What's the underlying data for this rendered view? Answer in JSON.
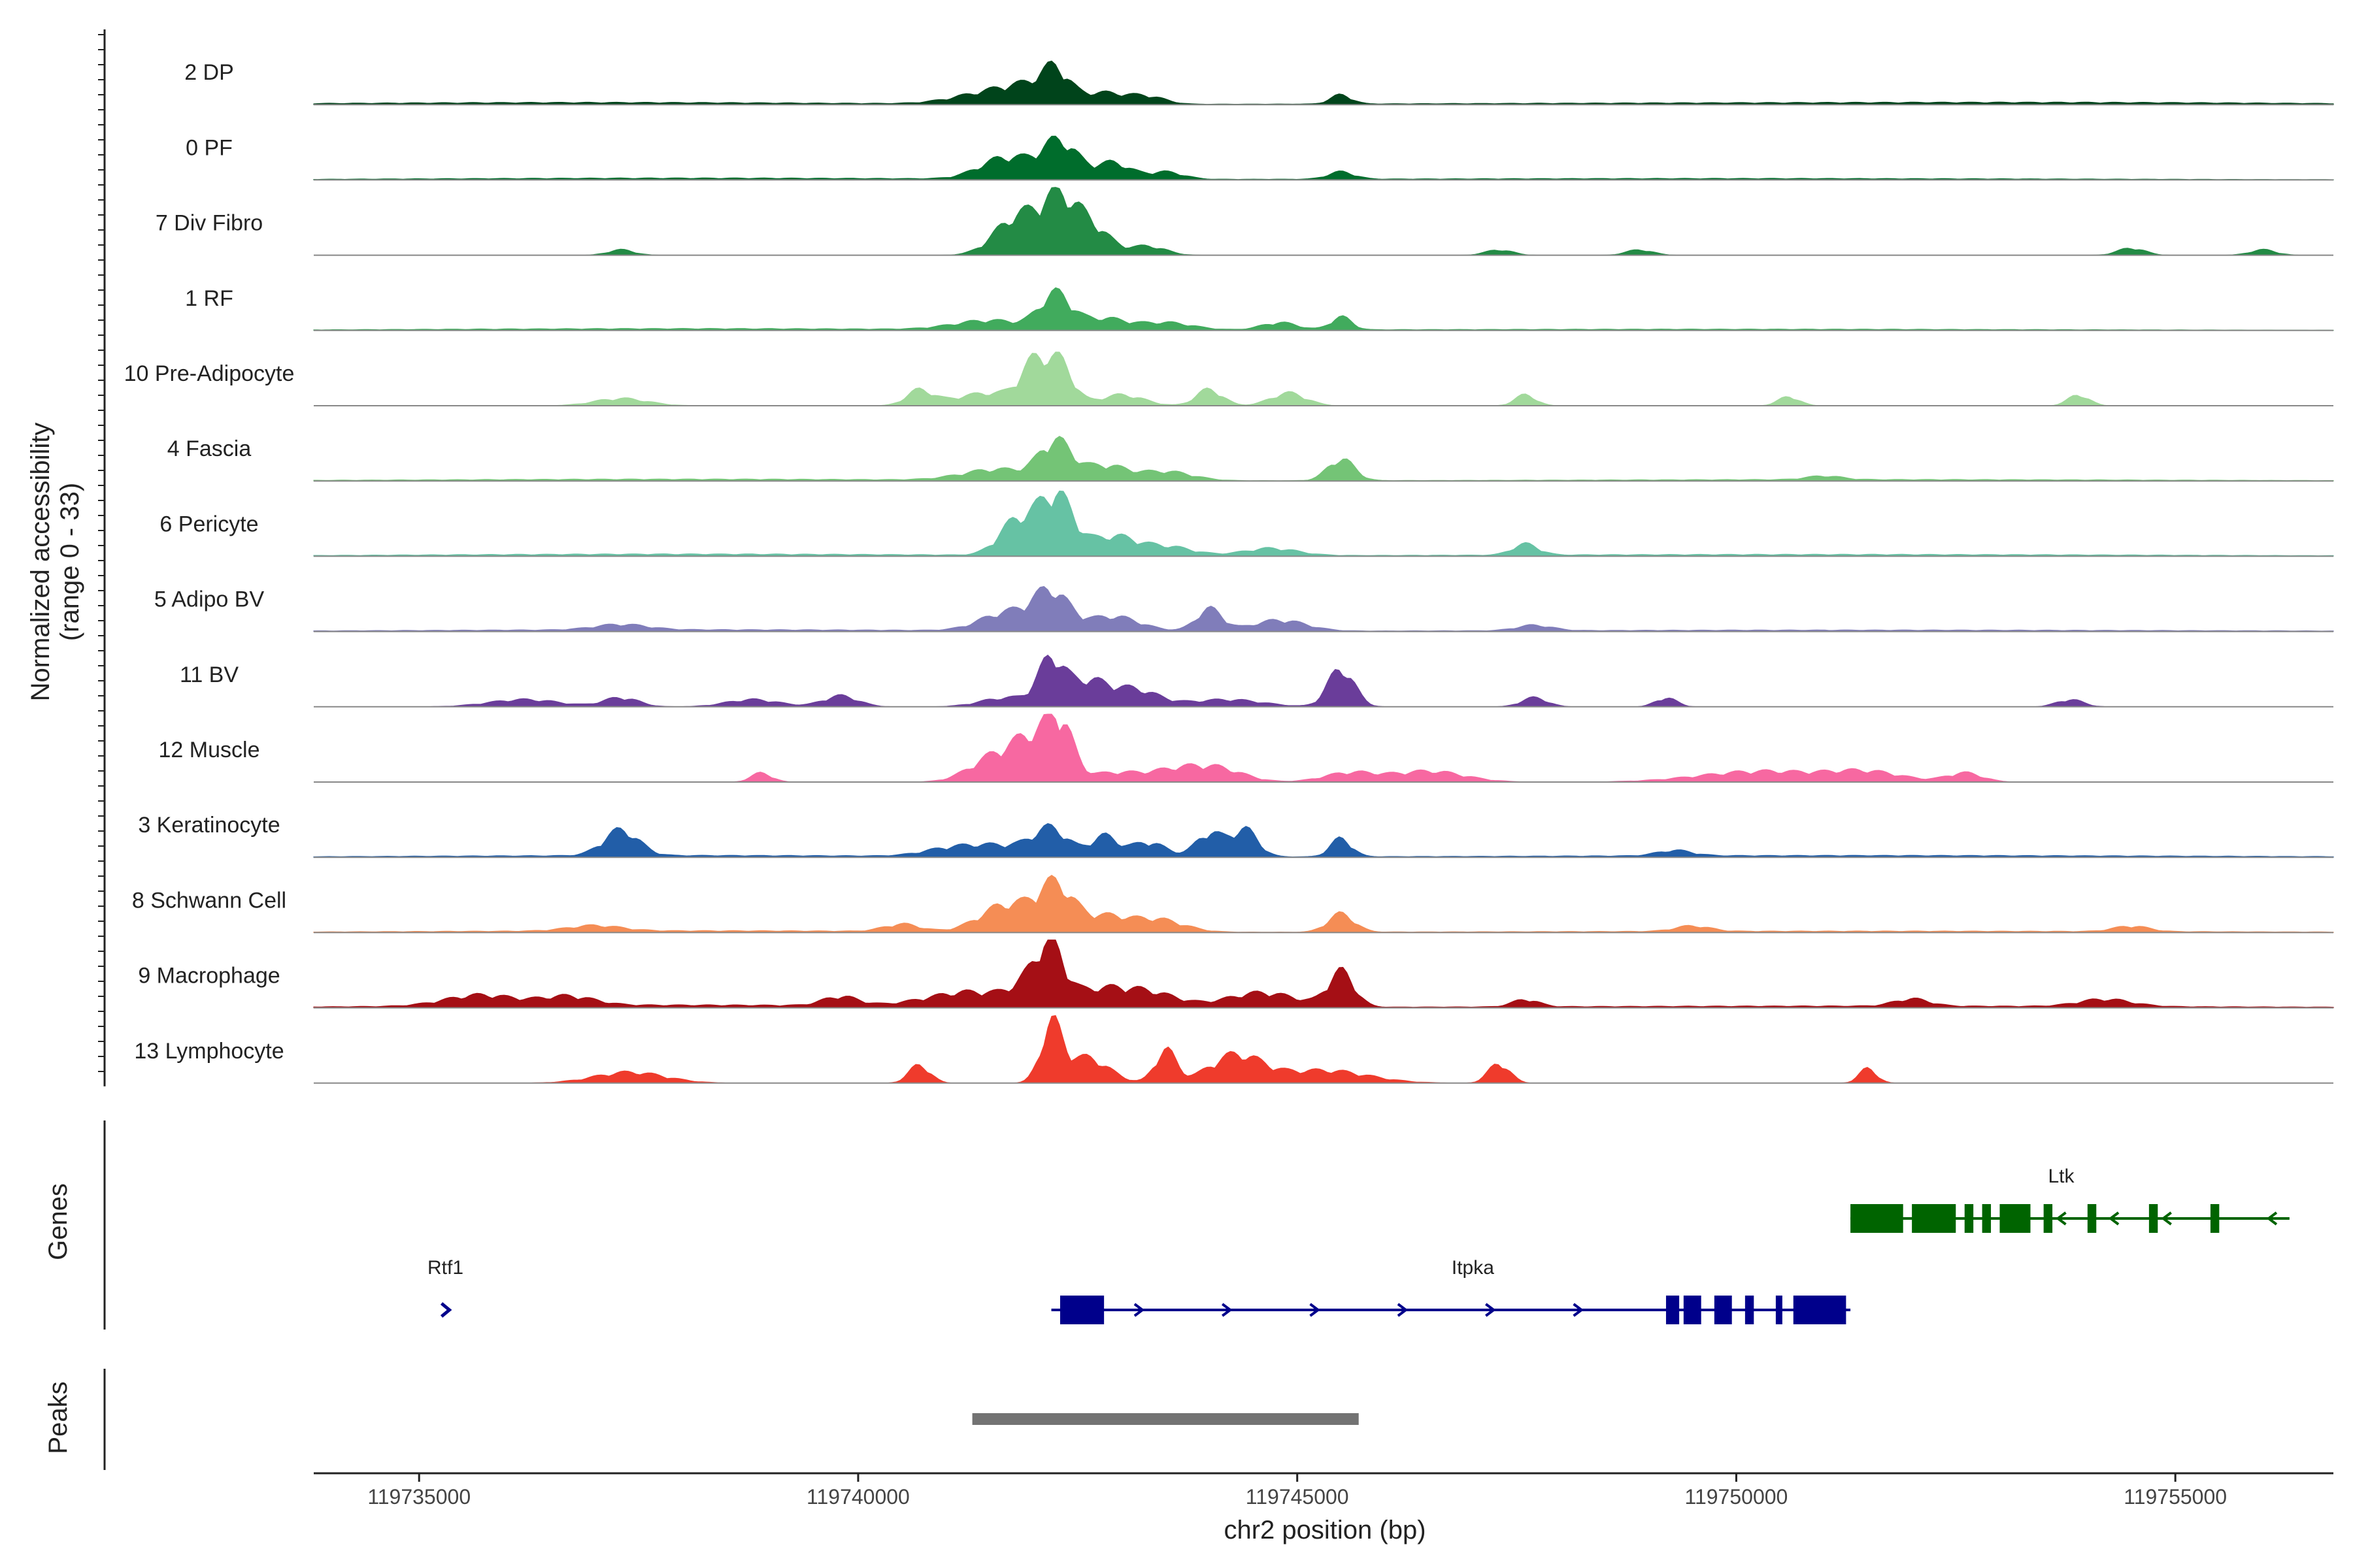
{
  "chart_data": {
    "type": "area",
    "title": "",
    "chromosome": "chr2",
    "xlabel": "chr2 position (bp)",
    "ylabel_line1": "Normalized accessibility",
    "ylabel_line2": "(range 0 - 33)",
    "ylim": [
      0,
      33
    ],
    "xlim": [
      119733800,
      119756800
    ],
    "x_ticks": [
      119735000,
      119740000,
      119745000,
      119750000,
      119755000
    ],
    "x_tick_labels": [
      "119735000",
      "119740000",
      "119745000",
      "119750000",
      "119755000"
    ],
    "tracks": [
      {
        "name": "2 DP",
        "color": "#00441b",
        "peaks": [
          [
            119741500,
            6,
            400
          ],
          [
            119742000,
            8,
            300
          ],
          [
            119742250,
            14,
            150
          ],
          [
            119742800,
            6,
            250
          ],
          [
            119743300,
            4,
            200
          ],
          [
            119745500,
            5,
            120
          ],
          [
            119737000,
            1.2,
            3000
          ],
          [
            119750000,
            0.9,
            3500
          ],
          [
            119754500,
            0.8,
            2500
          ]
        ]
      },
      {
        "name": "0 PF",
        "color": "#006d2c",
        "peaks": [
          [
            119741700,
            12,
            300
          ],
          [
            119742300,
            20,
            200
          ],
          [
            119742900,
            9,
            200
          ],
          [
            119743500,
            4,
            200
          ],
          [
            119745500,
            4,
            150
          ],
          [
            119738000,
            1,
            3000
          ],
          [
            119750000,
            0.8,
            4000
          ]
        ]
      },
      {
        "name": "7 Div Fibro",
        "color": "#238b45",
        "peaks": [
          [
            119741800,
            20,
            250
          ],
          [
            119742300,
            30,
            220
          ],
          [
            119742700,
            12,
            200
          ],
          [
            119743300,
            5,
            200
          ],
          [
            119737300,
            3,
            150
          ],
          [
            119747300,
            3,
            150
          ],
          [
            119748900,
            3,
            150
          ],
          [
            119754500,
            4,
            150
          ],
          [
            119756000,
            3,
            150
          ]
        ]
      },
      {
        "name": "1 RF",
        "color": "#41ab5d",
        "peaks": [
          [
            119741500,
            5,
            400
          ],
          [
            119742250,
            19,
            180
          ],
          [
            119742800,
            6,
            250
          ],
          [
            119743500,
            4,
            300
          ],
          [
            119744800,
            4,
            200
          ],
          [
            119745500,
            7,
            120
          ],
          [
            119738000,
            1,
            3000
          ],
          [
            119750000,
            0.7,
            4000
          ]
        ]
      },
      {
        "name": "10 Pre-Adipocyte",
        "color": "#a1d99b",
        "peaks": [
          [
            119737300,
            4,
            300
          ],
          [
            119740700,
            8,
            150
          ],
          [
            119741500,
            7,
            400
          ],
          [
            119742000,
            20,
            150
          ],
          [
            119742300,
            22,
            150
          ],
          [
            119743000,
            6,
            250
          ],
          [
            119744000,
            9,
            150
          ],
          [
            119744900,
            7,
            200
          ],
          [
            119747600,
            6,
            120
          ],
          [
            119750600,
            5,
            120
          ],
          [
            119753900,
            6,
            120
          ]
        ]
      },
      {
        "name": "4 Fascia",
        "color": "#74c476",
        "peaks": [
          [
            119741600,
            6,
            400
          ],
          [
            119742250,
            20,
            180
          ],
          [
            119742800,
            8,
            250
          ],
          [
            119743500,
            5,
            300
          ],
          [
            119745500,
            12,
            150
          ],
          [
            119751000,
            2,
            200
          ],
          [
            119738000,
            1,
            3000
          ],
          [
            119751500,
            0.8,
            3500
          ]
        ]
      },
      {
        "name": "6 Pericyte",
        "color": "#66c2a4",
        "peaks": [
          [
            119741800,
            18,
            200
          ],
          [
            119742250,
            33,
            200
          ],
          [
            119742900,
            10,
            250
          ],
          [
            119743500,
            5,
            300
          ],
          [
            119744700,
            4,
            300
          ],
          [
            119747600,
            6,
            150
          ],
          [
            119738000,
            1.2,
            3000
          ],
          [
            119751000,
            1,
            4000
          ]
        ]
      },
      {
        "name": "5 Adipo BV",
        "color": "#807dba",
        "peaks": [
          [
            119741700,
            10,
            300
          ],
          [
            119742200,
            20,
            200
          ],
          [
            119742900,
            8,
            300
          ],
          [
            119744000,
            12,
            150
          ],
          [
            119744800,
            6,
            300
          ],
          [
            119737300,
            3,
            300
          ],
          [
            119747700,
            3,
            200
          ],
          [
            119738000,
            1,
            3000
          ],
          [
            119751500,
            0.8,
            4000
          ]
        ]
      },
      {
        "name": "11 BV",
        "color": "#6a3d9a",
        "peaks": [
          [
            119742200,
            25,
            150
          ],
          [
            119742600,
            12,
            200
          ],
          [
            119743100,
            10,
            300
          ],
          [
            119745500,
            21,
            150
          ],
          [
            119736200,
            4,
            400
          ],
          [
            119737300,
            5,
            200
          ],
          [
            119739800,
            6,
            200
          ],
          [
            119741700,
            5,
            300
          ],
          [
            119744200,
            4,
            400
          ],
          [
            119747700,
            5,
            150
          ],
          [
            119749200,
            5,
            120
          ],
          [
            119753800,
            4,
            150
          ],
          [
            119738800,
            4,
            300
          ]
        ]
      },
      {
        "name": "12 Muscle",
        "color": "#f768a1",
        "peaks": [
          [
            119741600,
            15,
            300
          ],
          [
            119742000,
            18,
            200
          ],
          [
            119742300,
            30,
            150
          ],
          [
            119742900,
            5,
            300
          ],
          [
            119743600,
            6,
            300
          ],
          [
            119744100,
            7,
            300
          ],
          [
            119745600,
            5,
            300
          ],
          [
            119746500,
            6,
            400
          ],
          [
            119750300,
            6,
            700
          ],
          [
            119751500,
            5,
            400
          ],
          [
            119752600,
            5,
            200
          ],
          [
            119738900,
            5,
            120
          ]
        ]
      },
      {
        "name": "3 Keratinocyte",
        "color": "#225ea8",
        "peaks": [
          [
            119737300,
            14,
            200
          ],
          [
            119741600,
            6,
            400
          ],
          [
            119742200,
            14,
            200
          ],
          [
            119742800,
            11,
            150
          ],
          [
            119743300,
            8,
            200
          ],
          [
            119744000,
            13,
            150
          ],
          [
            119744400,
            15,
            150
          ],
          [
            119745500,
            10,
            120
          ],
          [
            119741000,
            3,
            300
          ],
          [
            119749300,
            3,
            200
          ],
          [
            119738000,
            1,
            3000
          ],
          [
            119751500,
            1,
            4000
          ]
        ]
      },
      {
        "name": "8 Schwann Cell",
        "color": "#f58d55",
        "peaks": [
          [
            119741700,
            15,
            300
          ],
          [
            119742250,
            24,
            200
          ],
          [
            119742800,
            8,
            250
          ],
          [
            119743400,
            7,
            300
          ],
          [
            119745500,
            10,
            150
          ],
          [
            119740500,
            4,
            200
          ],
          [
            119737000,
            3,
            300
          ],
          [
            119749500,
            3,
            200
          ],
          [
            119754500,
            3,
            200
          ],
          [
            119738000,
            1,
            3000
          ],
          [
            119751500,
            0.8,
            4000
          ]
        ]
      },
      {
        "name": "9 Macrophage",
        "color": "#a50f15",
        "peaks": [
          [
            119741300,
            8,
            500
          ],
          [
            119742000,
            12,
            200
          ],
          [
            119742200,
            24,
            150
          ],
          [
            119742800,
            10,
            400
          ],
          [
            119743400,
            5,
            300
          ],
          [
            119744600,
            8,
            400
          ],
          [
            119745500,
            19,
            150
          ],
          [
            119735700,
            6,
            400
          ],
          [
            119736700,
            5,
            300
          ],
          [
            119739800,
            5,
            200
          ],
          [
            119747600,
            4,
            150
          ],
          [
            119752000,
            4,
            200
          ],
          [
            119754200,
            4,
            300
          ],
          [
            119738000,
            1.5,
            3000
          ],
          [
            119751500,
            1,
            4000
          ]
        ]
      },
      {
        "name": "13 Lymphocyte",
        "color": "#ef3b2c",
        "peaks": [
          [
            119742200,
            30,
            120
          ],
          [
            119742600,
            14,
            250
          ],
          [
            119743500,
            18,
            120
          ],
          [
            119744300,
            15,
            300
          ],
          [
            119737400,
            6,
            400
          ],
          [
            119740700,
            10,
            120
          ],
          [
            119745300,
            7,
            500
          ],
          [
            119747300,
            11,
            120
          ],
          [
            119751500,
            8,
            100
          ]
        ]
      }
    ],
    "genes": [
      {
        "name": "Rtf1",
        "strand": "+",
        "start": 119735300,
        "end": 119735500,
        "exons": [
          [
            119735300,
            119735350
          ]
        ],
        "color": "#00008b",
        "row": 2
      },
      {
        "name": "Itpka",
        "strand": "+",
        "start": 119742200,
        "end": 119751300,
        "exons": [
          [
            119742300,
            119742800
          ],
          [
            119749200,
            119749350
          ],
          [
            119749400,
            119749600
          ],
          [
            119749750,
            119749950
          ],
          [
            119750100,
            119750200
          ],
          [
            119750450,
            119750500
          ],
          [
            119750650,
            119751250
          ]
        ],
        "color": "#00008b",
        "row": 2
      },
      {
        "name": "Ltk",
        "strand": "-",
        "start": 119751300,
        "end": 119756300,
        "exons": [
          [
            119751300,
            119751900
          ],
          [
            119752000,
            119752500
          ],
          [
            119752600,
            119752700
          ],
          [
            119752800,
            119752900
          ],
          [
            119753000,
            119753350
          ],
          [
            119753500,
            119753600
          ],
          [
            119754000,
            119754100
          ],
          [
            119754700,
            119754800
          ],
          [
            119755400,
            119755500
          ]
        ],
        "color": "#006400",
        "row": 1
      }
    ],
    "peaks_track": {
      "color": "#737373",
      "regions": [
        [
          119741300,
          119745700
        ]
      ]
    },
    "panel_titles": {
      "genes": "Genes",
      "peaks": "Peaks"
    }
  }
}
